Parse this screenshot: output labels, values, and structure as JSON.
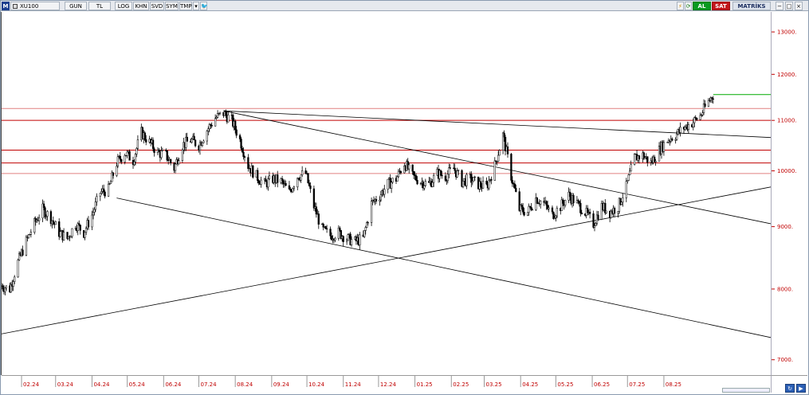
{
  "toolbar": {
    "logo": "M",
    "symbol": "XU100",
    "period": "GUN",
    "currency": "TL",
    "log": "LOG",
    "khn": "KHN",
    "svd": "SVD",
    "sym": "SYM",
    "tmp": "TMP",
    "dropdown": "▾",
    "twitter": "🐦",
    "flash": "⚡",
    "refresh": "⟳",
    "buy": "AL",
    "sell": "SAT",
    "matrix": "MATRİKS",
    "min": "−",
    "max": "□",
    "close": "×",
    "scroll_left": "↻",
    "scroll_right": "▶"
  },
  "colors": {
    "candle": "#000000",
    "axis_label": "#c00000",
    "horizontal_level": "#c00000",
    "horizontal_level_light": "#e08080",
    "trendline": "#000000",
    "last_price_marker": "#00aa00"
  },
  "chart_data": {
    "type": "candlestick",
    "title": "",
    "xlabel": "",
    "ylabel": "",
    "y_scale": "log",
    "y_range": [
      6800,
      13500
    ],
    "x_range": [
      "2024-01-15",
      "2025-10-31"
    ],
    "y_ticks": [
      {
        "value": 7000,
        "label": "7000."
      },
      {
        "value": 8000,
        "label": "8000."
      },
      {
        "value": 9000,
        "label": "9000."
      },
      {
        "value": 10000,
        "label": "10000."
      },
      {
        "value": 11000,
        "label": "11000."
      },
      {
        "value": 12000,
        "label": "12000."
      },
      {
        "value": 13000,
        "label": "13000."
      }
    ],
    "x_ticks": [
      {
        "date": "2024-02-01",
        "label": "02.24"
      },
      {
        "date": "2024-03-01",
        "label": "03.24"
      },
      {
        "date": "2024-04-01",
        "label": "04.24"
      },
      {
        "date": "2024-05-01",
        "label": "05.24"
      },
      {
        "date": "2024-06-01",
        "label": "06.24"
      },
      {
        "date": "2024-07-01",
        "label": "07.24"
      },
      {
        "date": "2024-08-01",
        "label": "08.24"
      },
      {
        "date": "2024-09-01",
        "label": "09.24"
      },
      {
        "date": "2024-10-01",
        "label": "10.24"
      },
      {
        "date": "2024-11-01",
        "label": "11.24"
      },
      {
        "date": "2024-12-01",
        "label": "12.24"
      },
      {
        "date": "2025-01-01",
        "label": "01.25"
      },
      {
        "date": "2025-02-01",
        "label": "02.25"
      },
      {
        "date": "2025-03-01",
        "label": "03.25"
      },
      {
        "date": "2025-04-01",
        "label": "04.25"
      },
      {
        "date": "2025-05-01",
        "label": "05.25"
      },
      {
        "date": "2025-06-01",
        "label": "06.25"
      },
      {
        "date": "2025-07-01",
        "label": "07.25"
      },
      {
        "date": "2025-08-01",
        "label": "08.25"
      }
    ],
    "price_path": [
      [
        "2024-01-15",
        8050
      ],
      [
        "2024-01-22",
        8000
      ],
      [
        "2024-01-29",
        8420
      ],
      [
        "2024-02-05",
        8750
      ],
      [
        "2024-02-12",
        9050
      ],
      [
        "2024-02-19",
        9300
      ],
      [
        "2024-02-26",
        9150
      ],
      [
        "2024-03-04",
        8900
      ],
      [
        "2024-03-11",
        8800
      ],
      [
        "2024-03-18",
        9050
      ],
      [
        "2024-03-25",
        8900
      ],
      [
        "2024-04-01",
        9200
      ],
      [
        "2024-04-08",
        9600
      ],
      [
        "2024-04-15",
        9650
      ],
      [
        "2024-04-22",
        10150
      ],
      [
        "2024-04-29",
        10350
      ],
      [
        "2024-05-06",
        10200
      ],
      [
        "2024-05-13",
        10750
      ],
      [
        "2024-05-20",
        10550
      ],
      [
        "2024-05-27",
        10350
      ],
      [
        "2024-06-03",
        10300
      ],
      [
        "2024-06-10",
        10050
      ],
      [
        "2024-06-17",
        10500
      ],
      [
        "2024-06-24",
        10600
      ],
      [
        "2024-07-01",
        10500
      ],
      [
        "2024-07-08",
        10800
      ],
      [
        "2024-07-15",
        11050
      ],
      [
        "2024-07-22",
        11150
      ],
      [
        "2024-07-29",
        11000
      ],
      [
        "2024-08-05",
        10600
      ],
      [
        "2024-08-12",
        10100
      ],
      [
        "2024-08-19",
        9900
      ],
      [
        "2024-08-26",
        9750
      ],
      [
        "2024-09-02",
        9850
      ],
      [
        "2024-09-09",
        9800
      ],
      [
        "2024-09-16",
        9600
      ],
      [
        "2024-09-23",
        9900
      ],
      [
        "2024-09-30",
        9950
      ],
      [
        "2024-10-07",
        9350
      ],
      [
        "2024-10-14",
        8950
      ],
      [
        "2024-10-21",
        8850
      ],
      [
        "2024-10-28",
        8900
      ],
      [
        "2024-11-04",
        8800
      ],
      [
        "2024-11-11",
        8750
      ],
      [
        "2024-11-18",
        8800
      ],
      [
        "2024-11-25",
        9400
      ],
      [
        "2024-12-02",
        9550
      ],
      [
        "2024-12-09",
        9750
      ],
      [
        "2024-12-16",
        9850
      ],
      [
        "2024-12-23",
        10150
      ],
      [
        "2024-12-30",
        9900
      ],
      [
        "2025-01-06",
        9800
      ],
      [
        "2025-01-13",
        9750
      ],
      [
        "2025-01-20",
        9950
      ],
      [
        "2025-01-27",
        9900
      ],
      [
        "2025-02-03",
        10050
      ],
      [
        "2025-02-10",
        9800
      ],
      [
        "2025-02-17",
        9850
      ],
      [
        "2025-02-24",
        9750
      ],
      [
        "2025-03-03",
        9700
      ],
      [
        "2025-03-10",
        10100
      ],
      [
        "2025-03-17",
        10700
      ],
      [
        "2025-03-24",
        9900
      ],
      [
        "2025-03-31",
        9300
      ],
      [
        "2025-04-07",
        9250
      ],
      [
        "2025-04-14",
        9500
      ],
      [
        "2025-04-21",
        9400
      ],
      [
        "2025-04-28",
        9200
      ],
      [
        "2025-05-05",
        9350
      ],
      [
        "2025-05-12",
        9550
      ],
      [
        "2025-05-19",
        9400
      ],
      [
        "2025-05-26",
        9250
      ],
      [
        "2025-06-02",
        9050
      ],
      [
        "2025-06-09",
        9350
      ],
      [
        "2025-06-16",
        9250
      ],
      [
        "2025-06-23",
        9350
      ],
      [
        "2025-06-30",
        9700
      ],
      [
        "2025-07-07",
        10250
      ],
      [
        "2025-07-14",
        10300
      ],
      [
        "2025-07-21",
        10150
      ],
      [
        "2025-07-28",
        10400
      ],
      [
        "2025-08-04",
        10600
      ],
      [
        "2025-08-11",
        10700
      ],
      [
        "2025-08-18",
        10850
      ],
      [
        "2025-08-25",
        10950
      ],
      [
        "2025-09-01",
        11100
      ],
      [
        "2025-09-08",
        11400
      ],
      [
        "2025-09-12",
        11550
      ]
    ],
    "horizontal_levels": [
      {
        "value": 11250,
        "style": "light"
      },
      {
        "value": 11000,
        "style": "dark"
      },
      {
        "value": 10400,
        "style": "dark"
      },
      {
        "value": 10150,
        "style": "dark"
      },
      {
        "value": 9950,
        "style": "light"
      }
    ],
    "trendlines": [
      {
        "from": [
          "2024-07-22",
          11200
        ],
        "to": [
          "2025-10-31",
          10650
        ]
      },
      {
        "from": [
          "2024-07-22",
          11200
        ],
        "to": [
          "2025-10-31",
          9050
        ]
      },
      {
        "from": [
          "2024-04-22",
          9500
        ],
        "to": [
          "2025-10-31",
          7300
        ]
      },
      {
        "from": [
          "2024-01-15",
          7350
        ],
        "to": [
          "2025-10-31",
          9700
        ]
      }
    ],
    "last_price_marker": {
      "from": [
        "2025-09-12",
        11550
      ],
      "to": [
        "2025-10-31",
        11550
      ]
    }
  }
}
